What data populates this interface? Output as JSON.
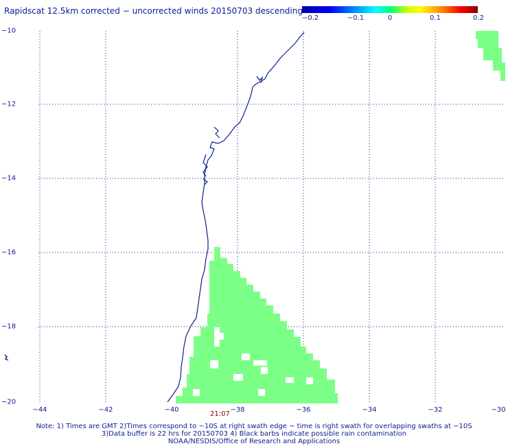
{
  "title": "Rapidscat 12.5km corrected − uncorrected winds 20150703 descending",
  "colorbar": {
    "ticks": [
      "−0.2",
      "−0.1",
      "0",
      "0.1",
      "0.2"
    ],
    "colors": [
      "#0000a0",
      "#0000ff",
      "#00ffff",
      "#00ff80",
      "#ffff00",
      "#ff0000",
      "#8b0000"
    ]
  },
  "axes": {
    "y_labels": [
      "−10",
      "−12",
      "−14",
      "−16",
      "−18",
      "−20"
    ],
    "x_labels": [
      "−44",
      "−42",
      "−40",
      "−38",
      "−36",
      "−34",
      "−32",
      "−30"
    ],
    "lon_range": [
      -45,
      -30
    ],
    "lat_range": [
      -20,
      -10
    ],
    "grid": "dotted"
  },
  "swath_color": "#7cff86",
  "coast_color": "#0b1c8f",
  "time_label": "21:07",
  "notes": [
    "Note: 1) Times are GMT 2)Times correspond to −10S at right swath edge − time is right swath for overlapping swaths at −10S",
    "3)Data buffer is 22 hrs for 20150703 4) Black barbs indicate possible rain contamination",
    "NOAA/NESDIS/Office of Research and Applications"
  ]
}
